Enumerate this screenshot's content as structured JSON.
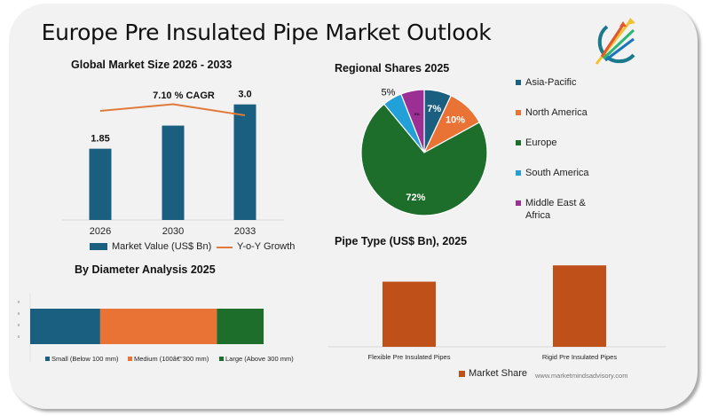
{
  "header": {
    "title": "Europe Pre Insulated Pipe Market Outlook",
    "logo_icon": "rising-arrows-logo-icon"
  },
  "colors": {
    "blue": "#1a5e80",
    "orange": "#e87335",
    "green": "#1e6e2b",
    "cyan": "#23a0d8",
    "purple": "#9b2f93",
    "rust": "#c0501a",
    "line": "#e07a3a"
  },
  "footer": {
    "website": "www.marketmindsadvisory.com"
  },
  "chart_data": [
    {
      "type": "bar",
      "title": "Global Market Size 2026 - 2033",
      "categories": [
        "2026",
        "2030",
        "2033"
      ],
      "series": [
        {
          "name": "Market Value (US$ Bn)",
          "values": [
            1.85,
            2.45,
            3.0
          ]
        },
        {
          "name": "Y-o-Y Growth",
          "type": "line",
          "values": [
            7.0,
            7.3,
            6.8
          ]
        }
      ],
      "data_labels": [
        "1.85",
        "",
        "3.0"
      ],
      "annotation": "7.10 % CAGR",
      "legend": "bottom",
      "xlabel": "",
      "ylabel": "",
      "ylim": [
        0,
        3.5
      ]
    },
    {
      "type": "pie",
      "title": "Regional Shares 2025",
      "categories": [
        "Asia-Pacific",
        "North America",
        "Europe",
        "South America",
        "Middle East & Africa"
      ],
      "values": [
        7,
        10,
        72,
        5,
        6
      ],
      "data_labels": [
        "7%",
        "10%",
        "72%",
        "5%",
        "6%"
      ],
      "legend": "right"
    },
    {
      "type": "bar",
      "orientation": "horizontal-stacked",
      "title": "By  Diameter Analysis 2025",
      "categories": [
        "2025"
      ],
      "series": [
        {
          "name": "Small (Below 100 mm)",
          "values": [
            30
          ]
        },
        {
          "name": "Medium (100â€“300 mm)",
          "values": [
            50
          ]
        },
        {
          "name": "Large (Above 300 mm)",
          "values": [
            20
          ]
        }
      ],
      "legend": "bottom"
    },
    {
      "type": "bar",
      "title": "Pipe Type (US$ Bn), 2025",
      "categories": [
        "Flexible Pre Insulated Pipes",
        "Rigid Pre Insulated Pipes"
      ],
      "series": [
        {
          "name": "Market Share",
          "values": [
            0.8,
            1.0
          ]
        }
      ],
      "legend": "bottom",
      "ylim": [
        0,
        1.1
      ]
    }
  ]
}
